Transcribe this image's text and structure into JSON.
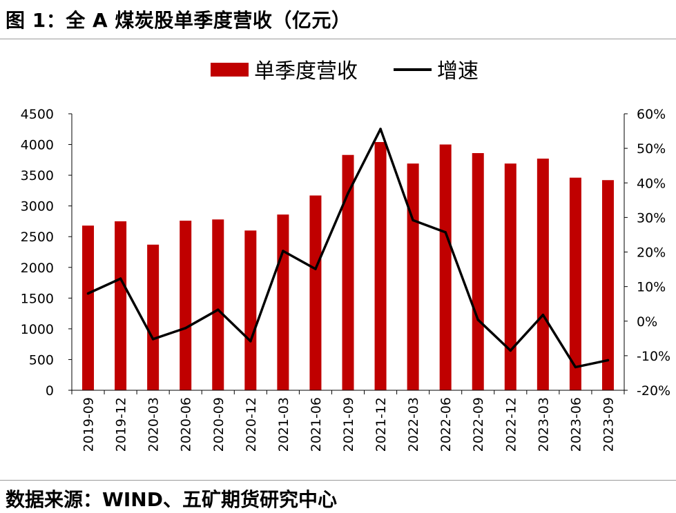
{
  "header": {
    "title": "图 1：全 A 煤炭股单季度营收（亿元）"
  },
  "footer": {
    "source": "数据来源：WIND、五矿期货研究中心"
  },
  "colors": {
    "bar": "#C00000",
    "line": "#000000",
    "axis": "#000000",
    "rule": "#9a9a9a"
  },
  "chart_data": {
    "type": "bar",
    "title": "",
    "xlabel": "",
    "ylabel": "",
    "categories": [
      "2019-09",
      "2019-12",
      "2020-03",
      "2020-06",
      "2020-09",
      "2020-12",
      "2021-03",
      "2021-06",
      "2021-09",
      "2021-12",
      "2022-03",
      "2022-06",
      "2022-09",
      "2022-12",
      "2023-03",
      "2023-06",
      "2023-09"
    ],
    "series": [
      {
        "name": "单季度营收",
        "type": "bar",
        "axis": "left",
        "values": [
          2680,
          2750,
          2370,
          2760,
          2780,
          2600,
          2860,
          3170,
          3830,
          4040,
          3690,
          4000,
          3860,
          3690,
          3770,
          3460,
          3420
        ]
      },
      {
        "name": "增速",
        "type": "line",
        "axis": "right",
        "values": [
          8.0,
          12.3,
          -5.2,
          -2.0,
          3.3,
          -5.8,
          20.3,
          15.1,
          37.0,
          55.6,
          29.2,
          25.7,
          0.4,
          -8.5,
          1.8,
          -13.3,
          -11.3
        ]
      }
    ],
    "y_left": {
      "ylim": [
        0,
        4500
      ],
      "ticks": [
        "0",
        "500",
        "1000",
        "1500",
        "2000",
        "2500",
        "3000",
        "3500",
        "4000",
        "4500"
      ]
    },
    "y_right": {
      "ylim": [
        -20,
        60
      ],
      "ticks": [
        "-20%",
        "-10%",
        "0%",
        "10%",
        "20%",
        "30%",
        "40%",
        "50%",
        "60%"
      ]
    },
    "legend": {
      "placement": "top-center",
      "entries": [
        "单季度营收",
        "增速"
      ]
    },
    "grid": false
  }
}
